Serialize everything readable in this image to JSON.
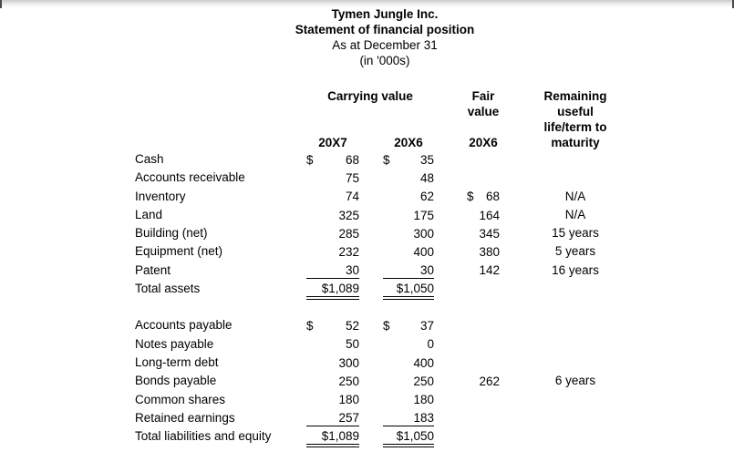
{
  "colors": {
    "text": "#000000",
    "background": "#ffffff",
    "top_edge_shadow": "#cbcbcb"
  },
  "header": {
    "company": "Tymen Jungle Inc.",
    "statement": "Statement of financial position",
    "date_line": "As at December 31",
    "units_line": "(in '000s)"
  },
  "table": {
    "group_headers": {
      "carrying_value": "Carrying value",
      "fair_value_lines": [
        "Fair",
        "value"
      ],
      "remaining_lines": [
        "Remaining",
        "useful",
        "life/term to"
      ],
      "remaining_last_line": "maturity"
    },
    "year_row": {
      "carrying_20x7": "20X7",
      "carrying_20x6": "20X6",
      "fair_20x6": "20X6"
    },
    "rows": [
      {
        "label": "Cash",
        "cur1": "$",
        "val1": "68",
        "cur2": "$",
        "val2": "35",
        "fcur": "",
        "fval": "",
        "life": "",
        "underline": "none"
      },
      {
        "label": "Accounts receivable",
        "cur1": "",
        "val1": "75",
        "cur2": "",
        "val2": "48",
        "fcur": "",
        "fval": "",
        "life": "",
        "underline": "none"
      },
      {
        "label": "Inventory",
        "cur1": "",
        "val1": "74",
        "cur2": "",
        "val2": "62",
        "fcur": "$",
        "fval": "68",
        "life": "N/A",
        "underline": "none"
      },
      {
        "label": "Land",
        "cur1": "",
        "val1": "325",
        "cur2": "",
        "val2": "175",
        "fcur": "",
        "fval": "164",
        "life": "N/A",
        "underline": "none"
      },
      {
        "label": "Building (net)",
        "cur1": "",
        "val1": "285",
        "cur2": "",
        "val2": "300",
        "fcur": "",
        "fval": "345",
        "life": "15 years",
        "underline": "none"
      },
      {
        "label": "Equipment (net)",
        "cur1": "",
        "val1": "232",
        "cur2": "",
        "val2": "400",
        "fcur": "",
        "fval": "380",
        "life": "5 years",
        "underline": "none"
      },
      {
        "label": "Patent",
        "cur1": "",
        "val1": "30",
        "cur2": "",
        "val2": "30",
        "fcur": "",
        "fval": "142",
        "life": "16 years",
        "underline": "single"
      },
      {
        "label": "Total assets",
        "cur1": "",
        "val1": "$1,089",
        "cur2": "",
        "val2": "$1,050",
        "fcur": "",
        "fval": "",
        "life": "",
        "underline": "double"
      },
      {
        "gap": true
      },
      {
        "label": "Accounts payable",
        "cur1": "$",
        "val1": "52",
        "cur2": "$",
        "val2": "37",
        "fcur": "",
        "fval": "",
        "life": "",
        "underline": "none"
      },
      {
        "label": "Notes payable",
        "cur1": "",
        "val1": "50",
        "cur2": "",
        "val2": "0",
        "fcur": "",
        "fval": "",
        "life": "",
        "underline": "none"
      },
      {
        "label": "Long-term debt",
        "cur1": "",
        "val1": "300",
        "cur2": "",
        "val2": "400",
        "fcur": "",
        "fval": "",
        "life": "",
        "underline": "none"
      },
      {
        "label": "Bonds payable",
        "cur1": "",
        "val1": "250",
        "cur2": "",
        "val2": "250",
        "fcur": "",
        "fval": "262",
        "life": "6 years",
        "underline": "none"
      },
      {
        "label": "Common shares",
        "cur1": "",
        "val1": "180",
        "cur2": "",
        "val2": "180",
        "fcur": "",
        "fval": "",
        "life": "",
        "underline": "none"
      },
      {
        "label": "Retained earnings",
        "cur1": "",
        "val1": "257",
        "cur2": "",
        "val2": "183",
        "fcur": "",
        "fval": "",
        "life": "",
        "underline": "single"
      },
      {
        "label": "Total liabilities and equity",
        "cur1": "",
        "val1": "$1,089",
        "cur2": "",
        "val2": "$1,050",
        "fcur": "",
        "fval": "",
        "life": "",
        "underline": "double"
      }
    ]
  }
}
